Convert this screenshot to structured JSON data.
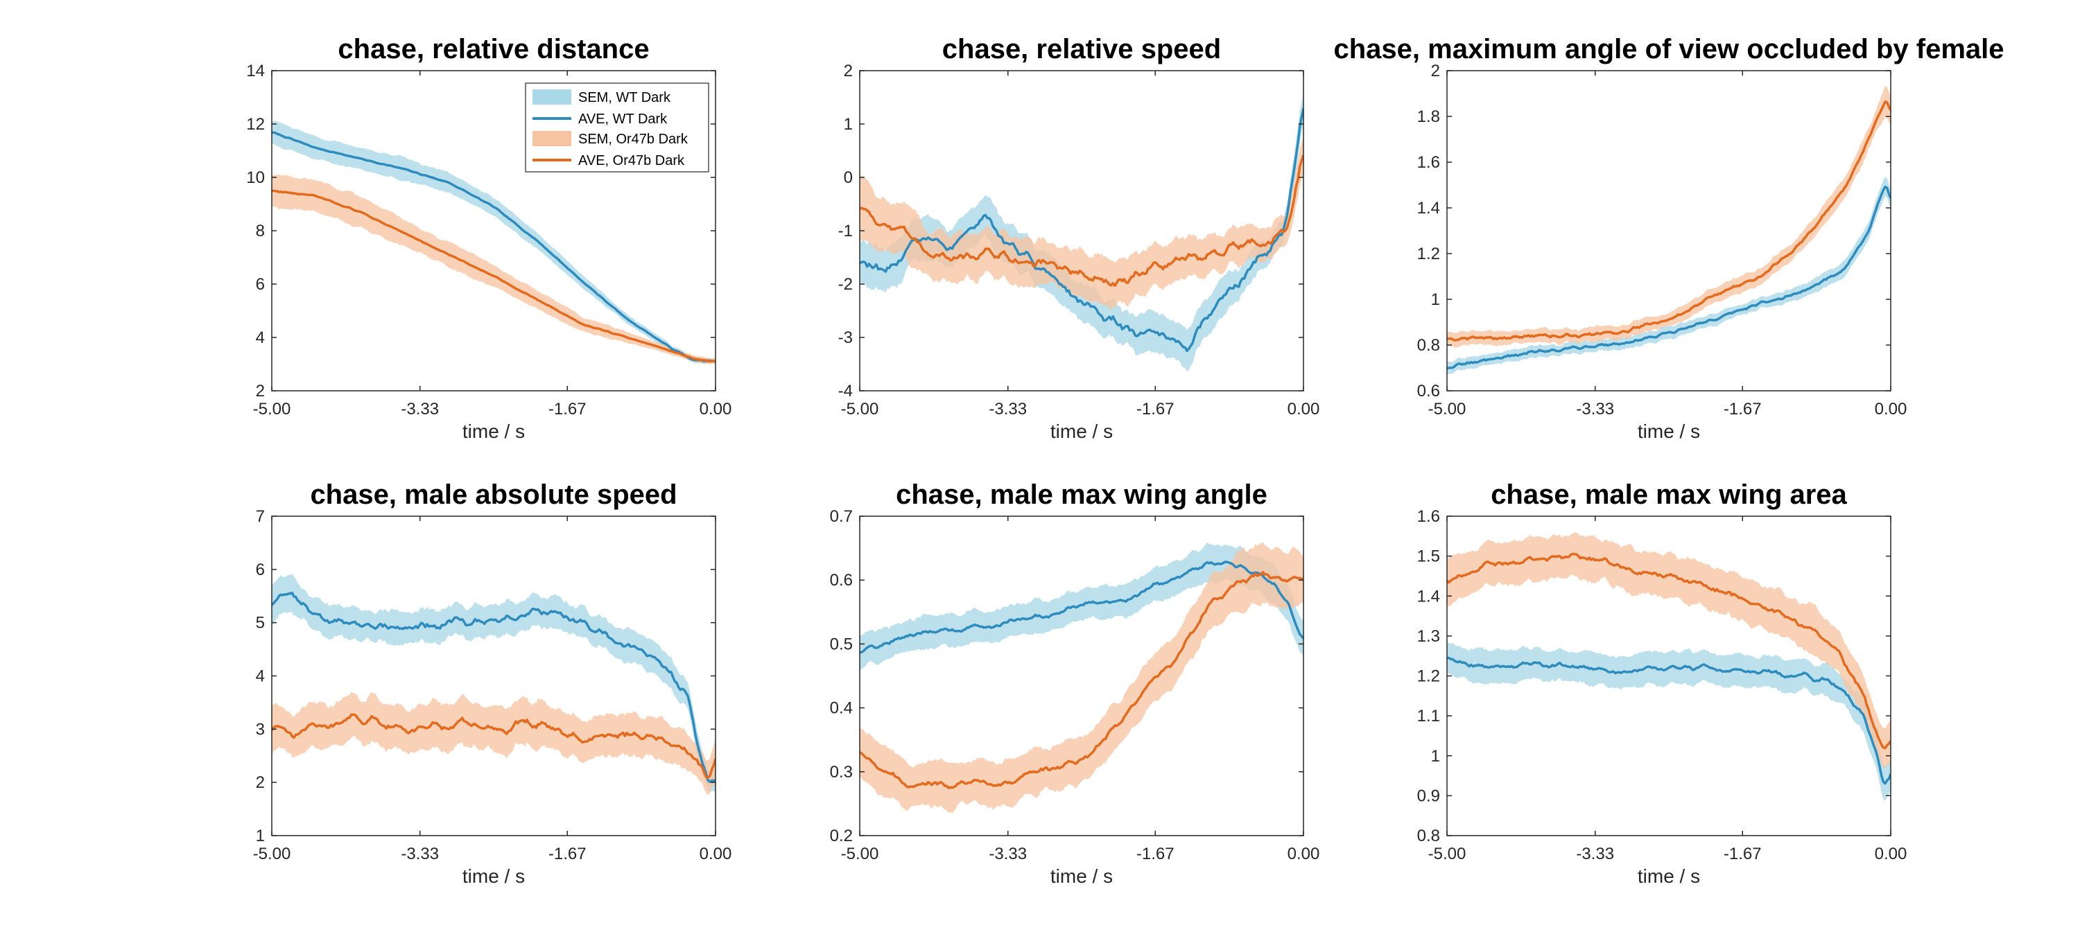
{
  "colors": {
    "wt_line": "#2E8BBE",
    "wt_band": "#A9D8E8",
    "or_line": "#E46A1E",
    "or_band": "#F7C4A2",
    "axis": "#262626"
  },
  "chart_data": [
    {
      "type": "line",
      "title": "chase, relative distance",
      "xlabel": "time / s",
      "ylabel": "",
      "xlim": [
        -5.0,
        0.0
      ],
      "ylim": [
        2,
        14
      ],
      "xticks": [
        -5.0,
        -3.33,
        -1.67,
        0.0
      ],
      "xtick_labels": [
        "-5.00",
        "-3.33",
        "-1.67",
        "0.00"
      ],
      "yticks": [
        2,
        4,
        6,
        8,
        10,
        12,
        14
      ],
      "ytick_labels": [
        "2",
        "4",
        "6",
        "8",
        "10",
        "12",
        "14"
      ],
      "grid": false,
      "legend": {
        "placement": "top-right",
        "entries": [
          "SEM, WT Dark",
          "AVE, WT Dark",
          "SEM, Or47b Dark",
          "AVE, Or47b Dark"
        ]
      },
      "x": [
        -5.0,
        -4.5,
        -4.0,
        -3.5,
        -3.0,
        -2.5,
        -2.0,
        -1.5,
        -1.0,
        -0.5,
        -0.25,
        0.0
      ],
      "series": [
        {
          "key": "wt",
          "values": [
            11.7,
            11.1,
            10.7,
            10.3,
            9.8,
            8.9,
            7.6,
            6.1,
            4.7,
            3.6,
            3.15,
            3.1
          ],
          "sem": [
            0.45,
            0.42,
            0.42,
            0.42,
            0.38,
            0.34,
            0.3,
            0.25,
            0.18,
            0.12,
            0.1,
            0.1
          ],
          "noise": 0.03,
          "smooth": 1
        },
        {
          "key": "or",
          "values": [
            9.5,
            9.3,
            8.7,
            7.9,
            7.1,
            6.3,
            5.4,
            4.5,
            4.0,
            3.5,
            3.2,
            3.1
          ],
          "sem": [
            0.6,
            0.6,
            0.55,
            0.5,
            0.45,
            0.4,
            0.35,
            0.28,
            0.2,
            0.13,
            0.1,
            0.1
          ],
          "noise": 0.03,
          "smooth": 1
        }
      ]
    },
    {
      "type": "line",
      "title": "chase, relative speed",
      "xlabel": "time / s",
      "ylabel": "",
      "xlim": [
        -5.0,
        0.0
      ],
      "ylim": [
        -4,
        2
      ],
      "xticks": [
        -5.0,
        -3.33,
        -1.67,
        0.0
      ],
      "xtick_labels": [
        "-5.00",
        "-3.33",
        "-1.67",
        "0.00"
      ],
      "yticks": [
        -4,
        -3,
        -2,
        -1,
        0,
        1,
        2
      ],
      "ytick_labels": [
        "-4",
        "-3",
        "-2",
        "-1",
        "0",
        "1",
        "2"
      ],
      "grid": false,
      "x": [
        -5.0,
        -4.7,
        -4.4,
        -4.0,
        -3.6,
        -3.2,
        -2.8,
        -2.4,
        -2.0,
        -1.6,
        -1.3,
        -1.0,
        -0.7,
        -0.4,
        -0.2,
        -0.08,
        0.0
      ],
      "series": [
        {
          "key": "wt",
          "values": [
            -1.5,
            -1.9,
            -1.1,
            -1.3,
            -0.8,
            -1.4,
            -1.9,
            -2.5,
            -2.9,
            -2.9,
            -3.2,
            -2.4,
            -1.9,
            -1.3,
            -1.0,
            0.3,
            1.6
          ],
          "sem": [
            0.4,
            0.4,
            0.4,
            0.38,
            0.38,
            0.38,
            0.35,
            0.35,
            0.35,
            0.38,
            0.38,
            0.35,
            0.3,
            0.25,
            0.2,
            0.3,
            0.3
          ],
          "noise": 0.22,
          "smooth": 2
        },
        {
          "key": "or",
          "values": [
            -0.5,
            -0.9,
            -1.2,
            -1.5,
            -1.4,
            -1.6,
            -1.6,
            -1.9,
            -2.0,
            -1.6,
            -1.5,
            -1.4,
            -1.3,
            -1.2,
            -1.0,
            -0.4,
            0.7
          ],
          "sem": [
            0.55,
            0.5,
            0.5,
            0.45,
            0.45,
            0.45,
            0.42,
            0.42,
            0.4,
            0.4,
            0.4,
            0.38,
            0.35,
            0.3,
            0.3,
            0.35,
            0.4
          ],
          "noise": 0.22,
          "smooth": 2
        }
      ]
    },
    {
      "type": "line",
      "title": "chase, maximum angle of view occluded by female",
      "xlabel": "time / s",
      "ylabel": "",
      "xlim": [
        -5.0,
        0.0
      ],
      "ylim": [
        0.6,
        2
      ],
      "xticks": [
        -5.0,
        -3.33,
        -1.67,
        0.0
      ],
      "xtick_labels": [
        "-5.00",
        "-3.33",
        "-1.67",
        "0.00"
      ],
      "yticks": [
        0.6,
        0.8,
        1.0,
        1.2,
        1.4,
        1.6,
        1.8,
        2.0
      ],
      "ytick_labels": [
        "0.6",
        "0.8",
        "1",
        "1.2",
        "1.4",
        "1.6",
        "1.8",
        "2"
      ],
      "grid": false,
      "x": [
        -5.0,
        -4.5,
        -4.0,
        -3.5,
        -3.0,
        -2.5,
        -2.0,
        -1.5,
        -1.0,
        -0.5,
        -0.25,
        -0.05,
        0.0
      ],
      "series": [
        {
          "key": "wt",
          "values": [
            0.7,
            0.74,
            0.77,
            0.79,
            0.81,
            0.85,
            0.91,
            0.98,
            1.03,
            1.14,
            1.3,
            1.52,
            1.42
          ],
          "sem": [
            0.025,
            0.025,
            0.025,
            0.025,
            0.025,
            0.025,
            0.025,
            0.025,
            0.03,
            0.035,
            0.04,
            0.04,
            0.04
          ],
          "noise": 0.01,
          "smooth": 1
        },
        {
          "key": "or",
          "values": [
            0.83,
            0.83,
            0.84,
            0.84,
            0.86,
            0.91,
            1.02,
            1.09,
            1.25,
            1.5,
            1.7,
            1.88,
            1.82
          ],
          "sem": [
            0.03,
            0.03,
            0.03,
            0.03,
            0.03,
            0.03,
            0.035,
            0.035,
            0.04,
            0.045,
            0.05,
            0.06,
            0.06
          ],
          "noise": 0.012,
          "smooth": 1
        }
      ]
    },
    {
      "type": "line",
      "title": "chase, male absolute speed",
      "xlabel": "time / s",
      "ylabel": "",
      "xlim": [
        -5.0,
        0.0
      ],
      "ylim": [
        1,
        7
      ],
      "xticks": [
        -5.0,
        -3.33,
        -1.67,
        0.0
      ],
      "xtick_labels": [
        "-5.00",
        "-3.33",
        "-1.67",
        "0.00"
      ],
      "yticks": [
        1,
        2,
        3,
        4,
        5,
        6,
        7
      ],
      "ytick_labels": [
        "1",
        "2",
        "3",
        "4",
        "5",
        "6",
        "7"
      ],
      "grid": false,
      "x": [
        -5.0,
        -4.8,
        -4.5,
        -4.0,
        -3.5,
        -3.0,
        -2.5,
        -2.0,
        -1.5,
        -1.0,
        -0.6,
        -0.3,
        -0.15,
        -0.05,
        0.0
      ],
      "series": [
        {
          "key": "wt",
          "values": [
            5.3,
            5.6,
            5.1,
            5.0,
            4.9,
            5.0,
            5.0,
            5.2,
            5.0,
            4.6,
            4.2,
            3.6,
            2.3,
            1.8,
            2.3
          ],
          "sem": [
            0.35,
            0.35,
            0.3,
            0.3,
            0.3,
            0.3,
            0.3,
            0.3,
            0.3,
            0.3,
            0.28,
            0.25,
            0.2,
            0.18,
            0.2
          ],
          "noise": 0.16,
          "smooth": 2
        },
        {
          "key": "or",
          "values": [
            3.1,
            3.0,
            3.0,
            3.2,
            3.0,
            3.1,
            3.0,
            3.1,
            2.8,
            2.9,
            2.8,
            2.6,
            2.3,
            2.0,
            2.9
          ],
          "sem": [
            0.45,
            0.42,
            0.42,
            0.42,
            0.42,
            0.42,
            0.42,
            0.42,
            0.4,
            0.4,
            0.38,
            0.35,
            0.3,
            0.3,
            0.35
          ],
          "noise": 0.18,
          "smooth": 2
        }
      ]
    },
    {
      "type": "line",
      "title": "chase, male max wing angle",
      "xlabel": "time / s",
      "ylabel": "",
      "xlim": [
        -5.0,
        0.0
      ],
      "ylim": [
        0.2,
        0.7
      ],
      "xticks": [
        -5.0,
        -3.33,
        -1.67,
        0.0
      ],
      "xtick_labels": [
        "-5.00",
        "-3.33",
        "-1.67",
        "0.00"
      ],
      "yticks": [
        0.2,
        0.3,
        0.4,
        0.5,
        0.6,
        0.7
      ],
      "ytick_labels": [
        "0.2",
        "0.3",
        "0.4",
        "0.5",
        "0.6",
        "0.7"
      ],
      "grid": false,
      "x": [
        -5.0,
        -4.5,
        -4.0,
        -3.5,
        -3.0,
        -2.5,
        -2.0,
        -1.5,
        -1.0,
        -0.7,
        -0.4,
        -0.2,
        0.0
      ],
      "series": [
        {
          "key": "wt",
          "values": [
            0.49,
            0.51,
            0.52,
            0.53,
            0.54,
            0.56,
            0.57,
            0.6,
            0.63,
            0.62,
            0.6,
            0.57,
            0.5
          ],
          "sem": [
            0.025,
            0.025,
            0.025,
            0.025,
            0.025,
            0.025,
            0.025,
            0.025,
            0.03,
            0.03,
            0.03,
            0.03,
            0.03
          ],
          "noise": 0.009,
          "smooth": 2
        },
        {
          "key": "or",
          "values": [
            0.33,
            0.28,
            0.28,
            0.28,
            0.3,
            0.32,
            0.39,
            0.47,
            0.57,
            0.6,
            0.61,
            0.6,
            0.6
          ],
          "sem": [
            0.04,
            0.035,
            0.035,
            0.035,
            0.035,
            0.035,
            0.035,
            0.04,
            0.045,
            0.045,
            0.045,
            0.045,
            0.045
          ],
          "noise": 0.012,
          "smooth": 2
        }
      ]
    },
    {
      "type": "line",
      "title": "chase, male max wing area",
      "xlabel": "time / s",
      "ylabel": "",
      "xlim": [
        -5.0,
        0.0
      ],
      "ylim": [
        0.8,
        1.6
      ],
      "xticks": [
        -5.0,
        -3.33,
        -1.67,
        0.0
      ],
      "xtick_labels": [
        "-5.00",
        "-3.33",
        "-1.67",
        "0.00"
      ],
      "yticks": [
        0.8,
        0.9,
        1.0,
        1.1,
        1.2,
        1.3,
        1.4,
        1.5,
        1.6
      ],
      "ytick_labels": [
        "0.8",
        "0.9",
        "1",
        "1.1",
        "1.2",
        "1.3",
        "1.4",
        "1.5",
        "1.6"
      ],
      "grid": false,
      "x": [
        -5.0,
        -4.5,
        -4.0,
        -3.5,
        -3.0,
        -2.5,
        -2.0,
        -1.5,
        -1.0,
        -0.6,
        -0.3,
        -0.15,
        -0.05,
        0.0
      ],
      "series": [
        {
          "key": "wt",
          "values": [
            1.24,
            1.22,
            1.23,
            1.22,
            1.21,
            1.22,
            1.22,
            1.21,
            1.2,
            1.18,
            1.1,
            1.0,
            0.9,
            0.98
          ],
          "sem": [
            0.04,
            0.04,
            0.04,
            0.04,
            0.04,
            0.04,
            0.04,
            0.04,
            0.04,
            0.04,
            0.04,
            0.04,
            0.04,
            0.04
          ],
          "noise": 0.014,
          "smooth": 2
        },
        {
          "key": "or",
          "values": [
            1.43,
            1.48,
            1.49,
            1.5,
            1.47,
            1.45,
            1.42,
            1.38,
            1.33,
            1.27,
            1.15,
            1.05,
            1.0,
            1.05
          ],
          "sem": [
            0.055,
            0.055,
            0.055,
            0.055,
            0.055,
            0.055,
            0.055,
            0.055,
            0.055,
            0.055,
            0.05,
            0.05,
            0.05,
            0.05
          ],
          "noise": 0.018,
          "smooth": 2
        }
      ]
    }
  ]
}
